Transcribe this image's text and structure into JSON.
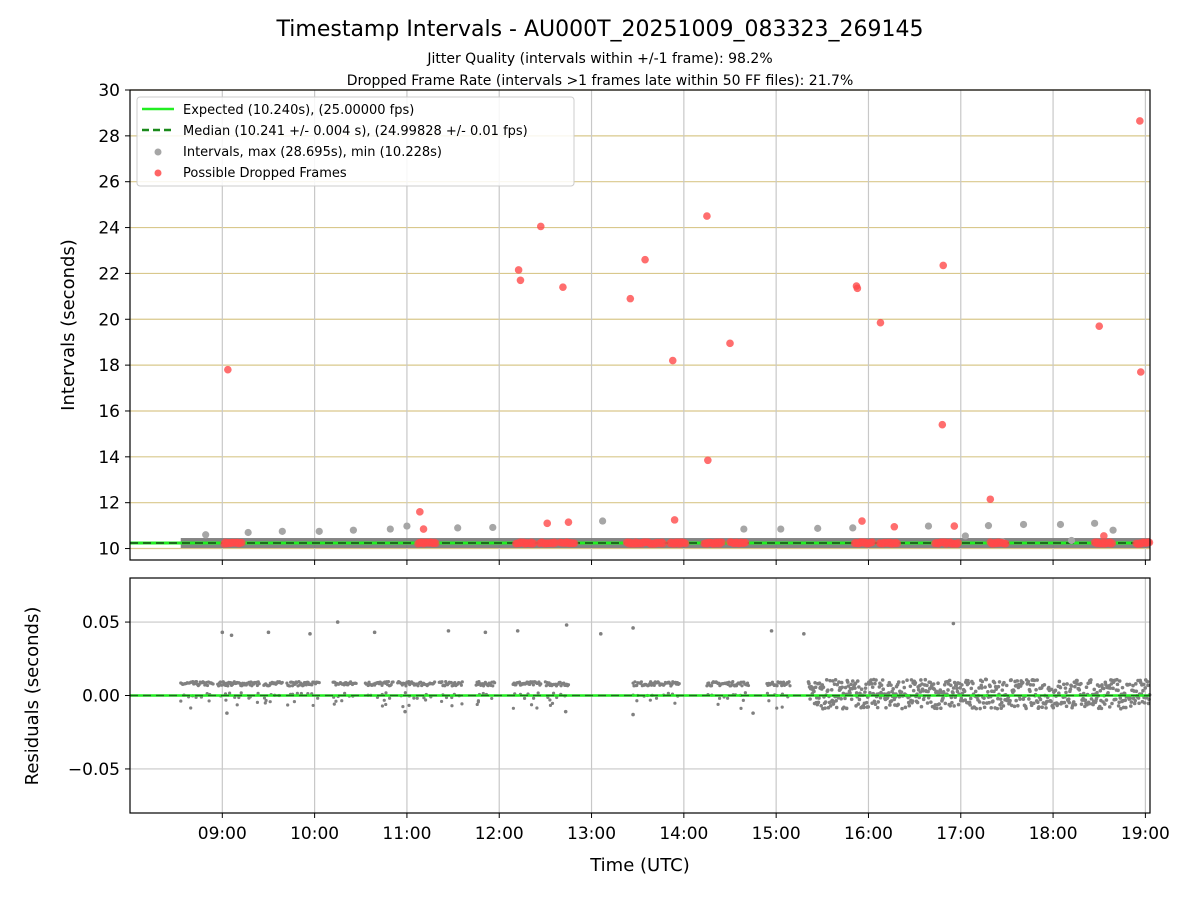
{
  "chart_data": [
    {
      "type": "scatter",
      "title": "Timestamp Intervals - AU000T_20251009_083323_269145",
      "subtitle_1": "Jitter Quality (intervals within +/-1 frame): 98.2%",
      "subtitle_2": "Dropped Frame Rate (intervals >1 frames late within 50 FF files): 21.7%",
      "xlabel": "",
      "ylabel": "Intervals (seconds)",
      "xlim": [
        8.0,
        19.05
      ],
      "ylim": [
        9.5,
        30
      ],
      "y_ticks": [
        10,
        12,
        14,
        16,
        18,
        20,
        22,
        24,
        26,
        28,
        30
      ],
      "x_ticks": [
        9,
        10,
        11,
        12,
        13,
        14,
        15,
        16,
        17,
        18,
        19
      ],
      "grid": true,
      "legend_position": "top-left",
      "legend": [
        {
          "label": "Expected (10.240s), (25.00000 fps)",
          "style": "solid-line",
          "color": "#22ee22"
        },
        {
          "label": "Median (10.241 +/- 0.004 s), (24.99828 +/- 0.01 fps)",
          "style": "dashed-line",
          "color": "#1a8a1a"
        },
        {
          "label": "Intervals, max (28.695s), min (10.228s)",
          "style": "marker",
          "color": "#999999"
        },
        {
          "label": "Possible Dropped Frames",
          "style": "marker",
          "color": "#ff4a4a"
        }
      ],
      "expected_interval": 10.24,
      "median_interval": 10.241,
      "interval_band": {
        "x_start": 8.55,
        "x_end": 19.05,
        "y": 10.24
      },
      "series": [
        {
          "name": "Intervals",
          "color": "#a6a6a6",
          "points": [
            {
              "x": 8.82,
              "y": 10.6
            },
            {
              "x": 9.28,
              "y": 10.7
            },
            {
              "x": 9.65,
              "y": 10.75
            },
            {
              "x": 10.05,
              "y": 10.75
            },
            {
              "x": 10.42,
              "y": 10.8
            },
            {
              "x": 10.82,
              "y": 10.85
            },
            {
              "x": 11.0,
              "y": 10.98
            },
            {
              "x": 11.55,
              "y": 10.9
            },
            {
              "x": 11.93,
              "y": 10.92
            },
            {
              "x": 13.12,
              "y": 11.2
            },
            {
              "x": 14.65,
              "y": 10.85
            },
            {
              "x": 15.05,
              "y": 10.85
            },
            {
              "x": 15.45,
              "y": 10.88
            },
            {
              "x": 15.83,
              "y": 10.9
            },
            {
              "x": 16.65,
              "y": 10.98
            },
            {
              "x": 17.05,
              "y": 10.55
            },
            {
              "x": 17.3,
              "y": 11.0
            },
            {
              "x": 17.68,
              "y": 11.05
            },
            {
              "x": 18.08,
              "y": 11.05
            },
            {
              "x": 18.45,
              "y": 11.1
            },
            {
              "x": 18.65,
              "y": 10.8
            },
            {
              "x": 17.45,
              "y": 10.3
            },
            {
              "x": 18.2,
              "y": 10.35
            }
          ]
        },
        {
          "name": "Possible Dropped Frames",
          "color": "#ff4a4a",
          "points": [
            {
              "x": 9.06,
              "y": 17.8
            },
            {
              "x": 11.14,
              "y": 11.6
            },
            {
              "x": 11.18,
              "y": 10.85
            },
            {
              "x": 12.21,
              "y": 22.15
            },
            {
              "x": 12.23,
              "y": 21.7
            },
            {
              "x": 12.45,
              "y": 24.05
            },
            {
              "x": 12.52,
              "y": 11.1
            },
            {
              "x": 12.69,
              "y": 21.4
            },
            {
              "x": 12.75,
              "y": 11.15
            },
            {
              "x": 13.42,
              "y": 20.9
            },
            {
              "x": 13.58,
              "y": 22.6
            },
            {
              "x": 13.88,
              "y": 18.2
            },
            {
              "x": 13.9,
              "y": 11.25
            },
            {
              "x": 14.25,
              "y": 24.5
            },
            {
              "x": 14.26,
              "y": 13.85
            },
            {
              "x": 14.5,
              "y": 18.95
            },
            {
              "x": 15.87,
              "y": 21.45
            },
            {
              "x": 15.88,
              "y": 21.35
            },
            {
              "x": 15.93,
              "y": 11.2
            },
            {
              "x": 16.13,
              "y": 19.85
            },
            {
              "x": 16.28,
              "y": 10.95
            },
            {
              "x": 16.8,
              "y": 15.4
            },
            {
              "x": 16.81,
              "y": 22.35
            },
            {
              "x": 16.93,
              "y": 10.98
            },
            {
              "x": 17.32,
              "y": 12.15
            },
            {
              "x": 18.5,
              "y": 19.7
            },
            {
              "x": 18.55,
              "y": 10.55
            },
            {
              "x": 18.94,
              "y": 28.65
            },
            {
              "x": 18.95,
              "y": 17.7
            }
          ],
          "clusters_at_baseline": [
            [
              9.02,
              9.22
            ],
            [
              11.12,
              11.32
            ],
            [
              12.18,
              12.38
            ],
            [
              12.44,
              12.62
            ],
            [
              12.66,
              12.82
            ],
            [
              13.38,
              13.78
            ],
            [
              13.85,
              14.02
            ],
            [
              14.22,
              14.42
            ],
            [
              14.5,
              14.68
            ],
            [
              15.85,
              16.05
            ],
            [
              16.12,
              16.32
            ],
            [
              16.72,
              16.98
            ],
            [
              17.32,
              17.5
            ],
            [
              18.45,
              18.65
            ],
            [
              18.9,
              19.05
            ]
          ]
        }
      ]
    },
    {
      "type": "scatter",
      "title": "",
      "xlabel": "Time (UTC)",
      "ylabel": "Residuals (seconds)",
      "xlim": [
        8.0,
        19.05
      ],
      "ylim": [
        -0.08,
        0.08
      ],
      "y_ticks": [
        -0.05,
        0.0,
        0.05
      ],
      "y_tick_labels": [
        "−0.05",
        "0.00",
        "0.05"
      ],
      "x_ticks": [
        9,
        10,
        11,
        12,
        13,
        14,
        15,
        16,
        17,
        18,
        19
      ],
      "x_tick_labels": [
        "09:00",
        "10:00",
        "11:00",
        "12:00",
        "13:00",
        "14:00",
        "15:00",
        "16:00",
        "17:00",
        "18:00",
        "19:00"
      ],
      "grid": true,
      "zero_line": 0.0,
      "series": [
        {
          "name": "Residuals",
          "color": "#808080",
          "segments": [
            [
              8.55,
              8.9
            ],
            [
              8.95,
              9.4
            ],
            [
              9.45,
              9.65
            ],
            [
              9.7,
              10.05
            ],
            [
              10.2,
              10.45
            ],
            [
              10.55,
              10.85
            ],
            [
              10.9,
              11.3
            ],
            [
              11.35,
              11.6
            ],
            [
              11.75,
              11.95
            ],
            [
              12.15,
              12.45
            ],
            [
              12.5,
              12.75
            ],
            [
              13.45,
              13.95
            ],
            [
              14.25,
              14.7
            ],
            [
              14.9,
              15.15
            ]
          ],
          "outliers": [
            {
              "x": 9.0,
              "y": 0.043
            },
            {
              "x": 9.1,
              "y": 0.041
            },
            {
              "x": 9.5,
              "y": 0.043
            },
            {
              "x": 9.95,
              "y": 0.042
            },
            {
              "x": 10.25,
              "y": 0.05
            },
            {
              "x": 10.65,
              "y": 0.043
            },
            {
              "x": 11.45,
              "y": 0.044
            },
            {
              "x": 11.85,
              "y": 0.043
            },
            {
              "x": 12.2,
              "y": 0.044
            },
            {
              "x": 12.73,
              "y": 0.048
            },
            {
              "x": 13.1,
              "y": 0.042
            },
            {
              "x": 13.45,
              "y": 0.046
            },
            {
              "x": 14.95,
              "y": 0.044
            },
            {
              "x": 15.3,
              "y": 0.042
            },
            {
              "x": 16.92,
              "y": 0.049
            },
            {
              "x": 9.05,
              "y": -0.012
            },
            {
              "x": 10.98,
              "y": -0.011
            },
            {
              "x": 12.72,
              "y": -0.011
            },
            {
              "x": 13.45,
              "y": -0.013
            },
            {
              "x": 14.75,
              "y": -0.012
            }
          ],
          "noisy_range": [
            15.35,
            19.05
          ]
        }
      ]
    }
  ]
}
